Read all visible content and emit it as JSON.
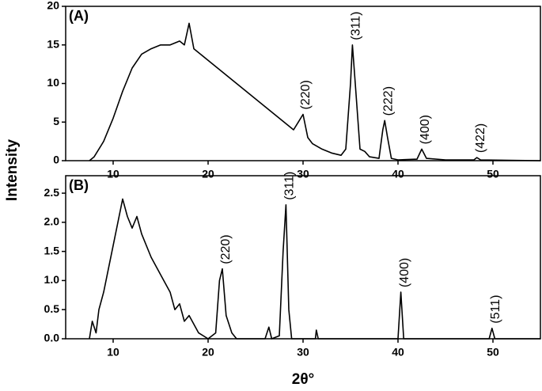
{
  "x_label": "2θ°",
  "y_label": "Intensity",
  "chart_data": [
    {
      "type": "line",
      "panel_label": "(A)",
      "color": "#000000",
      "x": [
        7.5,
        8,
        9,
        10,
        11,
        12,
        13,
        14,
        15,
        16,
        17,
        17.5,
        18,
        18.5,
        19,
        20,
        21,
        22,
        23,
        24,
        25,
        26,
        27,
        28,
        29,
        29.5,
        30,
        30.5,
        31,
        32,
        33,
        34,
        34.5,
        35,
        35.2,
        35.5,
        36,
        36.5,
        37,
        38,
        38.4,
        38.6,
        38.9,
        39.3,
        40,
        42,
        42.5,
        43,
        45,
        48,
        48.3,
        48.7,
        55
      ],
      "values": [
        0,
        0.5,
        2.5,
        5.5,
        9,
        12,
        13.8,
        14.5,
        15,
        15,
        15.5,
        15,
        17.8,
        14.5,
        14,
        13,
        12,
        11,
        10,
        9,
        8,
        7,
        6,
        5,
        4,
        5,
        6,
        3,
        2.2,
        1.5,
        1,
        0.7,
        1.5,
        10,
        15,
        10,
        1.5,
        1.2,
        0.5,
        0.3,
        4,
        5.2,
        3,
        0.3,
        0.1,
        0.2,
        1.5,
        0.3,
        0.1,
        0.1,
        0.4,
        0.1,
        0
      ],
      "xlim": [
        5,
        55
      ],
      "xticks": [
        10,
        20,
        30,
        40,
        50
      ],
      "ylim": [
        0,
        20
      ],
      "yticks": [
        0,
        5,
        10,
        15,
        20
      ],
      "annotations": [
        {
          "text": "(220)",
          "x": 29.9,
          "y": 6
        },
        {
          "text": "(311)",
          "x": 35.2,
          "y": 15
        },
        {
          "text": "(222)",
          "x": 38.6,
          "y": 5.2
        },
        {
          "text": "(400)",
          "x": 42.5,
          "y": 1.5
        },
        {
          "text": "(422)",
          "x": 48.3,
          "y": 0.4
        }
      ]
    },
    {
      "type": "line",
      "panel_label": "(B)",
      "color": "#000000",
      "x": [
        7.5,
        7.8,
        8.2,
        8.5,
        9,
        9.5,
        10,
        10.5,
        11,
        11.5,
        12,
        12.5,
        13,
        14,
        15,
        16,
        16.5,
        17,
        17.5,
        18,
        19,
        20,
        20.8,
        21.2,
        21.5,
        21.9,
        22.5,
        23,
        26,
        26.4,
        26.7,
        27.5,
        27.9,
        28.2,
        28.5,
        28.8,
        31.3,
        31.4,
        31.6,
        40,
        40.3,
        40.6,
        49.6,
        49.9,
        50.2,
        55
      ],
      "values": [
        0,
        0.3,
        0.1,
        0.5,
        0.8,
        1.2,
        1.6,
        2,
        2.4,
        2.1,
        1.9,
        2.1,
        1.8,
        1.4,
        1.1,
        0.8,
        0.5,
        0.6,
        0.3,
        0.4,
        0.1,
        0,
        0.1,
        1,
        1.2,
        0.4,
        0.1,
        0,
        0,
        0.2,
        0,
        0.05,
        1.5,
        2.3,
        0.5,
        0,
        0,
        0.15,
        0,
        0,
        0.8,
        0,
        0,
        0.18,
        0,
        0
      ],
      "xlim": [
        5,
        55
      ],
      "xticks": [
        10,
        20,
        30,
        40,
        50
      ],
      "ylim": [
        0,
        2.8
      ],
      "yticks": [
        {
          "value": 0,
          "label": "0.0"
        },
        0.5,
        {
          "value": 1,
          "label": "1.0"
        },
        1.5,
        {
          "value": 2,
          "label": "2.0"
        },
        2.5
      ],
      "annotations": [
        {
          "text": "(220)",
          "x": 21.5,
          "y": 1.2
        },
        {
          "text": "(311)",
          "x": 28.2,
          "y": 2.3
        },
        {
          "text": "(400)",
          "x": 40.3,
          "y": 0.8
        },
        {
          "text": "(511)",
          "x": 49.9,
          "y": 0.18
        }
      ]
    }
  ]
}
